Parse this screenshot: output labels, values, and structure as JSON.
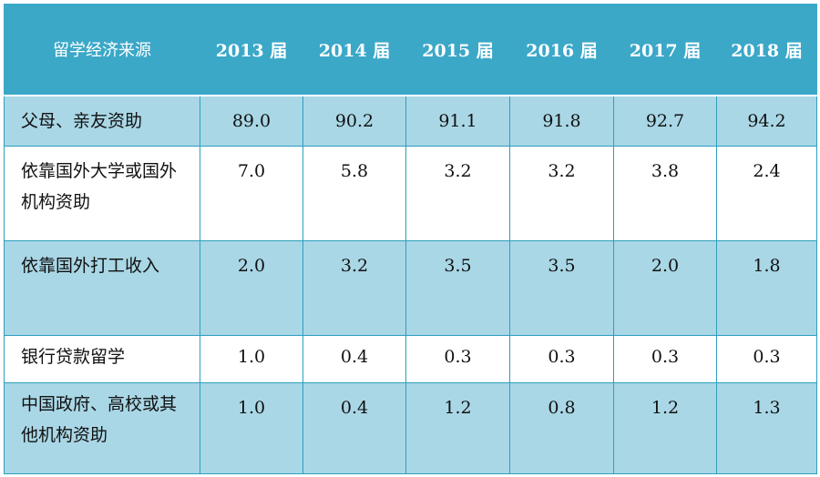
{
  "header": {
    "source_label": "留学经济来源",
    "years": [
      "2013 届",
      "2014 届",
      "2015 届",
      "2016 届",
      "2017 届",
      "2018 届"
    ]
  },
  "rows": [
    {
      "label": "父母、亲友资助",
      "values": [
        "89.0",
        "90.2",
        "91.1",
        "91.8",
        "92.7",
        "94.2"
      ]
    },
    {
      "label": "依靠国外大学或国外机构资助",
      "values": [
        "7.0",
        "5.8",
        "3.2",
        "3.2",
        "3.8",
        "2.4"
      ]
    },
    {
      "label": "依靠国外打工收入",
      "values": [
        "2.0",
        "3.2",
        "3.5",
        "3.5",
        "2.0",
        "1.8"
      ]
    },
    {
      "label": "银行贷款留学",
      "values": [
        "1.0",
        "0.4",
        "0.3",
        "0.3",
        "0.3",
        "0.3"
      ]
    },
    {
      "label": "中国政府、高校或其他机构资助",
      "values": [
        "1.0",
        "0.4",
        "1.2",
        "0.8",
        "1.2",
        "1.3"
      ]
    }
  ],
  "colors": {
    "header_bg": "#3ba8c8",
    "band_bg": "#a9d7e6",
    "border": "#2c9fbf"
  }
}
